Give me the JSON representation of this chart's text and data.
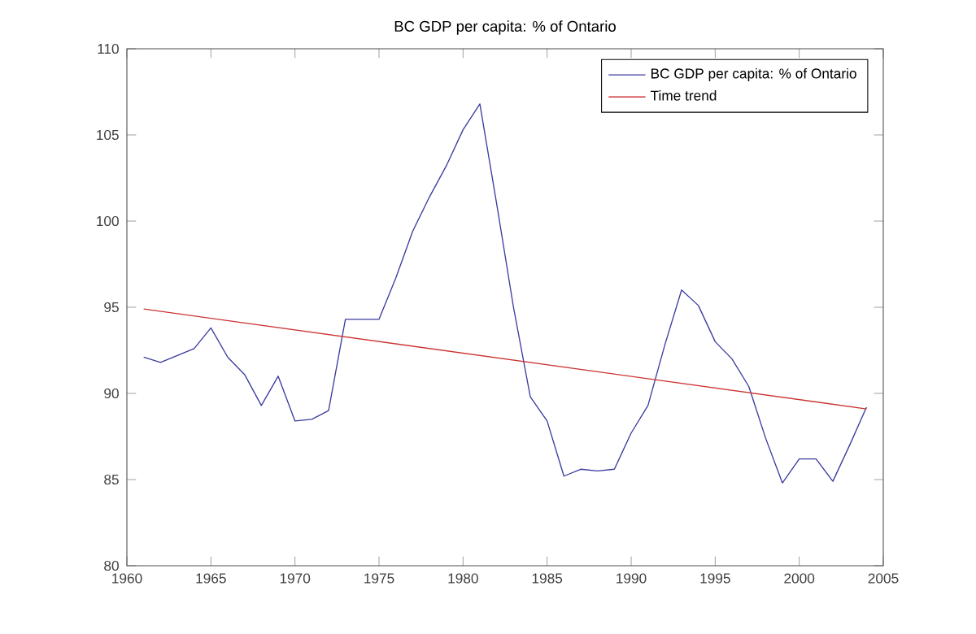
{
  "chart_data": {
    "type": "line",
    "title": "BC GDP per capita: % of Ontario",
    "xlim": [
      1960,
      2005
    ],
    "xticks": [
      1960,
      1965,
      1970,
      1975,
      1980,
      1985,
      1990,
      1995,
      2000,
      2005
    ],
    "ylim": [
      80,
      110
    ],
    "yticks": [
      80,
      85,
      90,
      95,
      100,
      105,
      110
    ],
    "legend": "top right",
    "grid": false,
    "series": [
      {
        "name": "BC GDP per capita: % of Ontario",
        "color": "#3a3aa0",
        "x": [
          1961,
          1962,
          1963,
          1964,
          1965,
          1966,
          1967,
          1968,
          1969,
          1970,
          1971,
          1972,
          1973,
          1974,
          1975,
          1976,
          1977,
          1978,
          1979,
          1980,
          1981,
          1982,
          1983,
          1984,
          1985,
          1986,
          1987,
          1988,
          1989,
          1990,
          1991,
          1992,
          1993,
          1994,
          1995,
          1996,
          1997,
          1998,
          1999,
          2000,
          2001,
          2002,
          2003,
          2004
        ],
        "values": [
          92.1,
          91.8,
          92.2,
          92.6,
          93.8,
          92.1,
          91.1,
          89.3,
          91.0,
          88.4,
          88.5,
          89.0,
          94.3,
          94.3,
          94.3,
          96.7,
          99.4,
          101.4,
          103.2,
          105.3,
          106.8,
          101.0,
          95.0,
          89.8,
          88.4,
          85.2,
          85.6,
          85.5,
          85.6,
          87.7,
          89.3,
          92.8,
          96.0,
          95.1,
          93.0,
          92.0,
          90.4,
          87.4,
          84.8,
          86.2,
          86.2,
          84.9,
          87.0,
          89.2
        ]
      },
      {
        "name": "Time trend",
        "color": "#cc3333",
        "x": [
          1961,
          2004
        ],
        "values": [
          94.9,
          89.1
        ]
      }
    ]
  }
}
